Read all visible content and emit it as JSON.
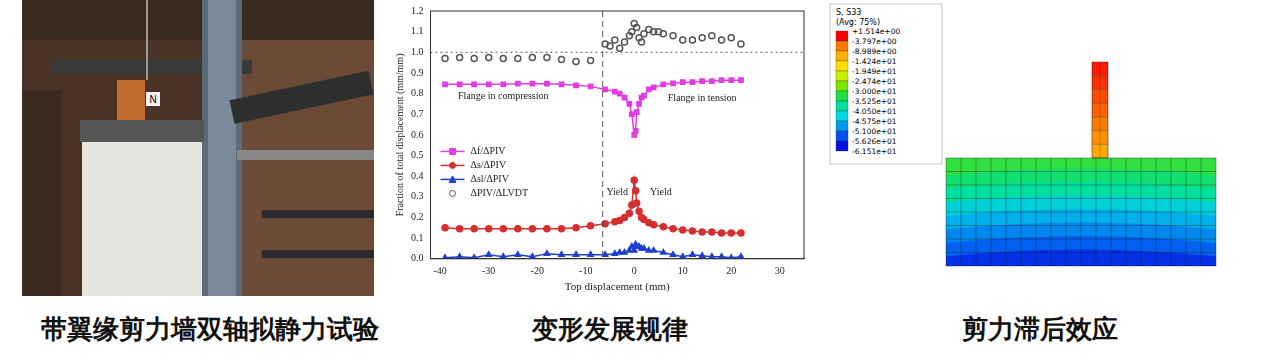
{
  "captions": [
    "带翼缘剪力墙双轴拟静力试验",
    "变形发展规律",
    "剪力滞后效应"
  ],
  "photo": {
    "sign": "N"
  },
  "chart_data": {
    "type": "line",
    "x_label": "Top displacement (mm)",
    "y_label": "Fraction of total displacement (mm/mm)",
    "xlim": [
      -42,
      35
    ],
    "xticks": [
      -40,
      -30,
      -20,
      -10,
      0,
      10,
      20,
      30
    ],
    "ylim": [
      0,
      1.2
    ],
    "yticks": [
      {
        "value": 0,
        "label": "0.0"
      },
      0.1,
      0.2,
      0.3,
      0.4,
      0.5,
      0.6,
      0.7,
      0.8,
      0.9,
      {
        "value": 1,
        "label": "1.0"
      },
      1.1,
      1.2
    ],
    "grid": false,
    "legend": "left",
    "x": [
      -39,
      -36,
      -33,
      -30,
      -27,
      -24,
      -21,
      -18,
      -15,
      -12,
      -9,
      -6,
      -4,
      -3,
      -2,
      -1,
      -0.5,
      0,
      0.3,
      0.5,
      1,
      1.5,
      2,
      3,
      4,
      6,
      8,
      10,
      12,
      14,
      16,
      18,
      20,
      22
    ],
    "series": [
      {
        "name": "Δf/ΔPIV",
        "color": "#e03ee0",
        "marker": "square",
        "line_style": "solid",
        "values": [
          0.845,
          0.845,
          0.845,
          0.845,
          0.845,
          0.848,
          0.848,
          0.848,
          0.845,
          0.84,
          0.835,
          0.82,
          0.81,
          0.8,
          0.78,
          0.75,
          0.7,
          0.6,
          0.62,
          0.71,
          0.75,
          0.78,
          0.79,
          0.82,
          0.83,
          0.845,
          0.85,
          0.855,
          0.855,
          0.86,
          0.86,
          0.865,
          0.865,
          0.865
        ]
      },
      {
        "name": "Δs/ΔPIV",
        "color": "#d62f2f",
        "marker": "circle",
        "line_style": "solid",
        "values": [
          0.15,
          0.145,
          0.145,
          0.145,
          0.145,
          0.145,
          0.145,
          0.145,
          0.145,
          0.15,
          0.16,
          0.17,
          0.18,
          0.185,
          0.2,
          0.22,
          0.26,
          0.38,
          0.33,
          0.27,
          0.23,
          0.2,
          0.19,
          0.175,
          0.165,
          0.155,
          0.145,
          0.14,
          0.135,
          0.13,
          0.13,
          0.125,
          0.125,
          0.125
        ]
      },
      {
        "name": "Δsl/ΔPIV",
        "color": "#1f3fd0",
        "marker": "triangle",
        "line_style": "solid",
        "values": [
          0.005,
          0.01,
          0.005,
          0.02,
          0.01,
          0.02,
          0.01,
          0.025,
          0.02,
          0.02,
          0.02,
          0.02,
          0.025,
          0.03,
          0.03,
          0.04,
          0.06,
          0.04,
          0.07,
          0.06,
          0.06,
          0.05,
          0.05,
          0.04,
          0.04,
          0.03,
          0.02,
          0.01,
          0.02,
          0.015,
          0.01,
          0.01,
          0.005,
          0.01
        ]
      },
      {
        "name": "ΔPIV/ΔLVDT",
        "color": "#555555",
        "marker": "open_circle",
        "type": "scatter",
        "x": [
          -39,
          -36,
          -33,
          -30,
          -27,
          -24,
          -21,
          -18,
          -15,
          -12,
          -9,
          -6,
          -5,
          -4,
          -3,
          -2,
          -1,
          -0.5,
          0,
          0.5,
          1,
          1.5,
          2,
          3,
          4,
          5,
          6,
          8,
          10,
          12,
          14,
          16,
          18,
          20,
          22
        ],
        "values": [
          0.97,
          0.975,
          0.97,
          0.975,
          0.97,
          0.97,
          0.975,
          0.975,
          0.965,
          0.955,
          0.96,
          1.04,
          1.03,
          1.06,
          1.02,
          1.05,
          1.08,
          1.1,
          1.14,
          1.12,
          1.07,
          1.05,
          1.09,
          1.11,
          1.1,
          1.1,
          1.09,
          1.08,
          1.06,
          1.06,
          1.07,
          1.08,
          1.06,
          1.07,
          1.04
        ]
      }
    ],
    "reference_lines": [
      {
        "axis": "x",
        "value": -6.5,
        "line_style": "dashed"
      },
      {
        "axis": "y",
        "value": 1,
        "line_style": "dotted"
      }
    ],
    "annotations": [
      {
        "text": "Flange in compression",
        "x": -27,
        "y": 0.785
      },
      {
        "text": "Flange in tension",
        "x": 14,
        "y": 0.775
      },
      {
        "text": "Yield",
        "x": -3.5,
        "y": 0.32
      },
      {
        "text": "Yield",
        "x": 5.5,
        "y": 0.32
      }
    ]
  },
  "contour": {
    "title": "S, S33",
    "subtitle": "(Avg: 75%)",
    "levels": [
      {
        "value": 1.514,
        "label": "+1.514e+00"
      },
      {
        "value": -3.797,
        "label": "-3.797e+00"
      },
      {
        "value": -8.989,
        "label": "-8.989e+00"
      },
      {
        "value": -14.24,
        "label": "-1.424e+01"
      },
      {
        "value": -19.49,
        "label": "-1.949e+01"
      },
      {
        "value": -24.74,
        "label": "-2.474e+01"
      },
      {
        "value": -30.0,
        "label": "-3.000e+01"
      },
      {
        "value": -35.25,
        "label": "-3.525e+01"
      },
      {
        "value": -40.5,
        "label": "-4.050e+01"
      },
      {
        "value": -45.75,
        "label": "-4.575e+01"
      },
      {
        "value": -51.0,
        "label": "-5.100e+01"
      },
      {
        "value": -56.26,
        "label": "-5.626e+01"
      },
      {
        "value": -61.51,
        "label": "-6.151e+01"
      }
    ]
  }
}
